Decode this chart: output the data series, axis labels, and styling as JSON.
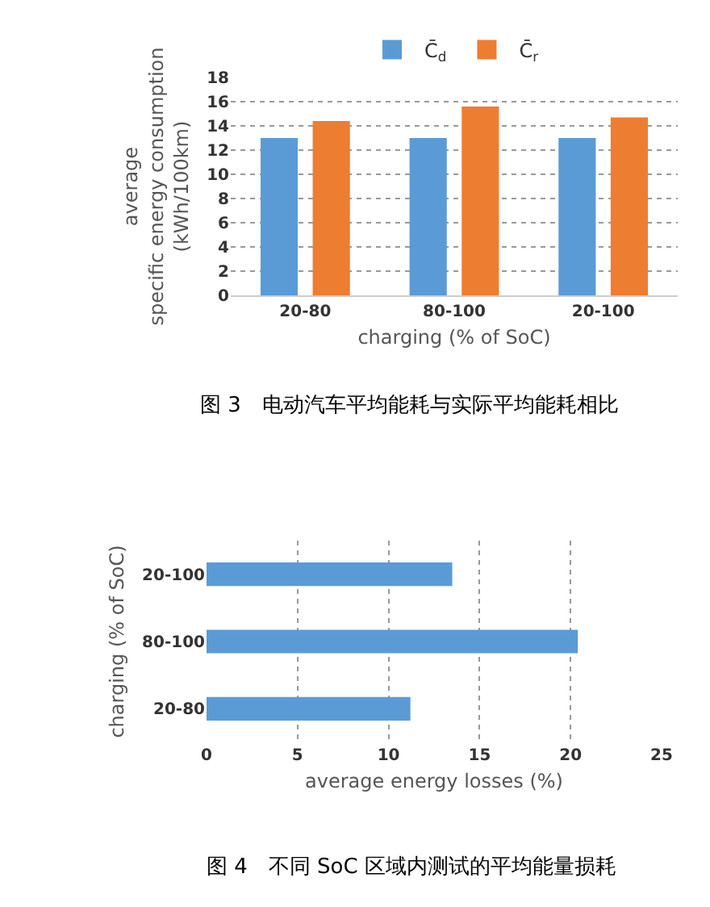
{
  "chart_data": [
    {
      "type": "bar",
      "ylabel": "average\nspecific energy consumption\n(kWh/100km)",
      "xlabel": "charging (% of SoC)",
      "categories": [
        "20-80",
        "80-100",
        "20-100"
      ],
      "series": [
        {
          "name": "C̄$_{d}$",
          "color": "#5b9bd5",
          "values": [
            13,
            13,
            13
          ]
        },
        {
          "name": "C̄$_{r}$",
          "color": "#ed7d31",
          "values": [
            14.4,
            15.6,
            14.7
          ]
        }
      ],
      "ylim": [
        0,
        18
      ],
      "yticks": [
        0,
        2,
        4,
        6,
        8,
        10,
        12,
        14,
        16,
        18
      ],
      "grid": "y",
      "legend": "top",
      "annotations": [
        "图 3　电动汽车平均能耗与实际平均能耗相比"
      ]
    },
    {
      "type": "bar",
      "orientation": "horizontal",
      "ylabel": "charging (% of SoC)",
      "xlabel": "average energy losses (%)",
      "categories": [
        "20-100",
        "80-100",
        "20-80"
      ],
      "values": [
        13.5,
        20.4,
        11.2
      ],
      "color": "#5b9bd5",
      "xlim": [
        0,
        25
      ],
      "xticks": [
        0,
        5,
        10,
        15,
        20,
        25
      ],
      "grid": "x",
      "annotations": [
        "图 4　不同 SoC 区域内测试的平均能量损耗"
      ]
    }
  ]
}
